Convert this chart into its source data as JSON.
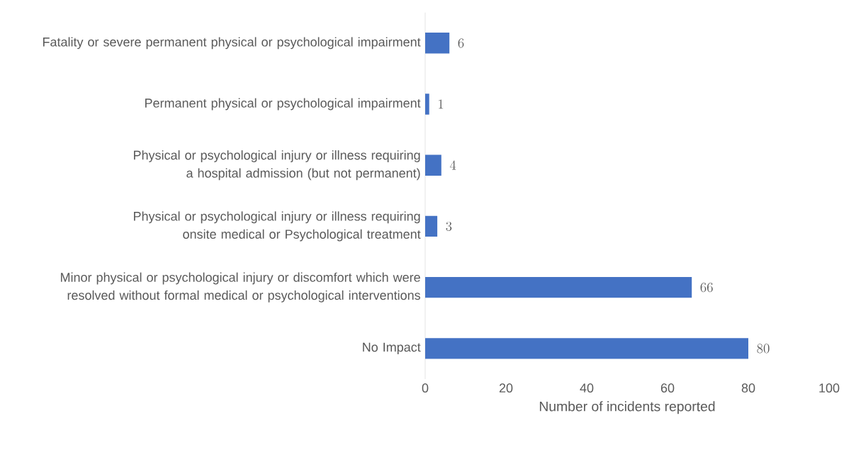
{
  "chart_data": {
    "type": "bar",
    "orientation": "horizontal",
    "categories": [
      "Fatality or severe permanent physical or psychological impairment",
      "Permanent physical or psychological impairment",
      "Physical or psychological injury or illness requiring a hospital admission (but not permanent)",
      "Physical or psychological injury or illness requiring onsite medical or Psychological treatment",
      "Minor physical or psychological injury or discomfort which were resolved without formal medical or psychological interventions",
      "No Impact"
    ],
    "values": [
      6,
      1,
      4,
      3,
      66,
      80
    ],
    "color": "#4472c4",
    "xlim": [
      0,
      100
    ],
    "xticks": [
      0,
      20,
      40,
      60,
      80,
      100
    ],
    "xlabel": "Number of incidents reported",
    "data_labels": true
  }
}
